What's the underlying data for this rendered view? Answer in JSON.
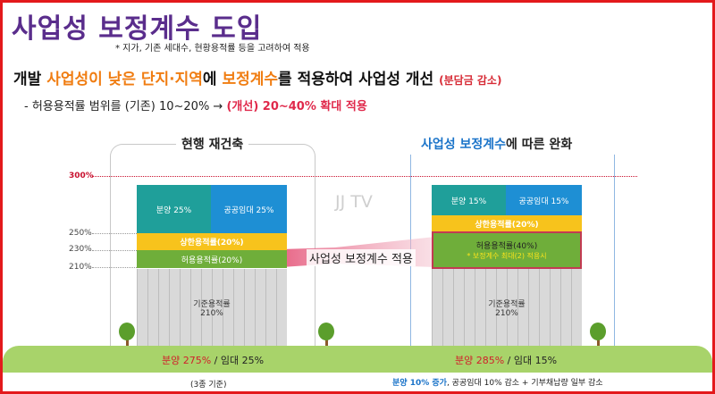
{
  "title": "사업성 보정계수 도입",
  "subnote": "* 지가, 기존 세대수, 현황용적률 등을 고려하여 적용",
  "headline": {
    "part1": "개발 ",
    "part2_orange": "사업성이 낮은 단지·지역",
    "part3": "에 ",
    "part4_orange": "보정계수",
    "part5": "를 적용하여 사업성 개선 ",
    "part6_red": "(분담금 감소)"
  },
  "bullet": {
    "prefix": "- 허용용적률 범위를 (기존) 10~20% → ",
    "red": "(개선) 20~40% 확대 적용"
  },
  "left_panel": {
    "caption": "현행  재건축",
    "y_labels": [
      "300%",
      "250%",
      "230%",
      "210%"
    ],
    "blocks": {
      "sale": "분양 25%",
      "rental": "공공임대 25%",
      "upper": "상한용적률(20%)",
      "allowed": "허용용적률(20%)",
      "base_line1": "기준용적률",
      "base_line2": "210%"
    },
    "ground": {
      "red": "분양 275%",
      "rest": " / 임대 25%"
    },
    "footnote": "(3종 기준)"
  },
  "right_panel": {
    "caption_blue": "사업성 보정계수",
    "caption_rest": "에 따른 완화",
    "blocks": {
      "sale": "분양 15%",
      "rental": "공공임대 15%",
      "upper": "상한용적률(20%)",
      "allowed_line1": "허용용적률(40%)",
      "allowed_line2": "* 보정계수 최대(2) 적용시",
      "base_line1": "기준용적률",
      "base_line2": "210%"
    },
    "ground": {
      "red": "분양 285%",
      "rest": " / 임대 15%"
    },
    "footnote": {
      "blue": "분양 10% 증가",
      "rest": ", 공공임대 10% 감소 + 기부채납량 일부 감소"
    }
  },
  "arrow_label": "사업성 보정계수 적용",
  "watermark": "JJ TV",
  "colors": {
    "title": "#5a2d8c",
    "accent_orange": "#f07d12",
    "accent_red": "#d72b36",
    "teal": "#1f9f9a",
    "blue": "#1e8fd4",
    "yellow": "#f7c31c",
    "green": "#6fae3a",
    "frame_red": "#e3191c"
  }
}
